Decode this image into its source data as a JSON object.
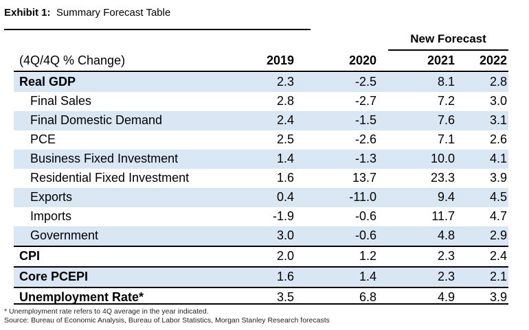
{
  "exhibit": {
    "label": "Exhibit 1:",
    "title": "Summary Forecast Table"
  },
  "table": {
    "new_forecast_label": "New Forecast",
    "header_label": "(4Q/4Q % Change)",
    "years": [
      "2019",
      "2020",
      "2021",
      "2022"
    ],
    "rows": [
      {
        "name": "Real GDP",
        "values": [
          "2.3",
          "-2.5",
          "8.1",
          "2.8"
        ]
      },
      {
        "name": "Final Sales",
        "values": [
          "2.8",
          "-2.7",
          "7.2",
          "3.0"
        ]
      },
      {
        "name": "Final Domestic Demand",
        "values": [
          "2.4",
          "-1.5",
          "7.6",
          "3.1"
        ]
      },
      {
        "name": "PCE",
        "values": [
          "2.5",
          "-2.6",
          "7.1",
          "2.6"
        ]
      },
      {
        "name": "Business Fixed Investment",
        "values": [
          "1.4",
          "-1.3",
          "10.0",
          "4.1"
        ]
      },
      {
        "name": "Residential Fixed Investment",
        "values": [
          "1.6",
          "13.7",
          "23.3",
          "3.9"
        ]
      },
      {
        "name": "Exports",
        "values": [
          "0.4",
          "-11.0",
          "9.4",
          "4.5"
        ]
      },
      {
        "name": "Imports",
        "values": [
          "-1.9",
          "-0.6",
          "11.7",
          "4.7"
        ]
      },
      {
        "name": "Government",
        "values": [
          "3.0",
          "-0.6",
          "4.8",
          "2.9"
        ]
      },
      {
        "name": "CPI",
        "values": [
          "2.0",
          "1.2",
          "2.3",
          "2.4"
        ]
      },
      {
        "name": "Core PCEPI",
        "values": [
          "1.6",
          "1.4",
          "2.3",
          "2.1"
        ]
      },
      {
        "name": "Unemployment Rate*",
        "values": [
          "3.5",
          "6.8",
          "4.9",
          "3.9"
        ]
      }
    ]
  },
  "footnotes": {
    "note": "* Unemployment rate refers to 4Q average in the year indicated.",
    "source": "Source: Bureau of Economic Analysis, Bureau of Labor Statistics, Morgan Stanley Research forecasts"
  },
  "colors": {
    "band": "#d9e6f4",
    "rule": "#000000"
  }
}
